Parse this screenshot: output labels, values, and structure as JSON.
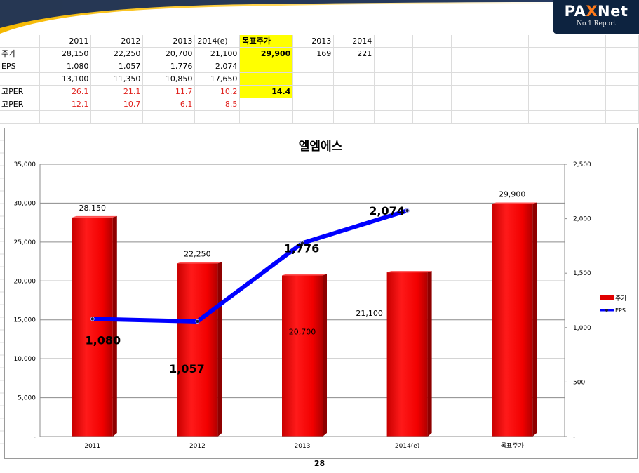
{
  "brand": {
    "logo_text_1": "PA",
    "logo_text_x": "X",
    "logo_text_2": "Net",
    "logo_sub": "No.1 Report"
  },
  "sheet": {
    "header": [
      "",
      "2011",
      "2012",
      "2013",
      "2014(e)",
      "목표주가",
      "2013",
      "2014"
    ],
    "rows": [
      [
        "주가",
        "28,150",
        "22,250",
        "20,700",
        "21,100",
        "29,900",
        "169",
        "221"
      ],
      [
        "EPS",
        "1,080",
        "1,057",
        "1,776",
        "2,074",
        "",
        "",
        ""
      ],
      [
        "",
        "13,100",
        "11,350",
        "10,850",
        "17,650",
        "",
        "",
        ""
      ],
      [
        "고PER",
        "26.1",
        "21.1",
        "11.7",
        "10.2",
        "14.4",
        "",
        ""
      ],
      [
        "고PER",
        "12.1",
        "10.7",
        "6.1",
        "8.5",
        "",
        "",
        ""
      ]
    ],
    "highlight_color": "#ffff00",
    "red_text_color": "#e0201c"
  },
  "chart_data": {
    "type": "bar",
    "title": "엘엠에스",
    "categories": [
      "2011",
      "2012",
      "2013",
      "2014(e)",
      "목표주가"
    ],
    "series": [
      {
        "name": "주가",
        "type": "bar",
        "axis": "left",
        "color": "#e00000",
        "values": [
          28150,
          22250,
          20700,
          21100,
          29900
        ],
        "data_labels": [
          "28,150",
          "22,250",
          "20,700",
          "21,100",
          "29,900"
        ]
      },
      {
        "name": "EPS",
        "type": "line",
        "axis": "right",
        "color": "#0000ff",
        "values": [
          1080,
          1057,
          1776,
          2074,
          null
        ],
        "data_labels": [
          "1,080",
          "1,057",
          "1,776",
          "2,074",
          ""
        ]
      }
    ],
    "ylim_left": [
      0,
      35000
    ],
    "ylim_right": [
      0,
      2500
    ],
    "yticks_left": [
      "-",
      "5,000",
      "10,000",
      "15,000",
      "20,000",
      "25,000",
      "30,000",
      "35,000"
    ],
    "yticks_right": [
      "-",
      "500",
      "1,000",
      "1,500",
      "2,000",
      "2,500"
    ],
    "legend_position": "right",
    "grid": true
  },
  "page_number": "28"
}
